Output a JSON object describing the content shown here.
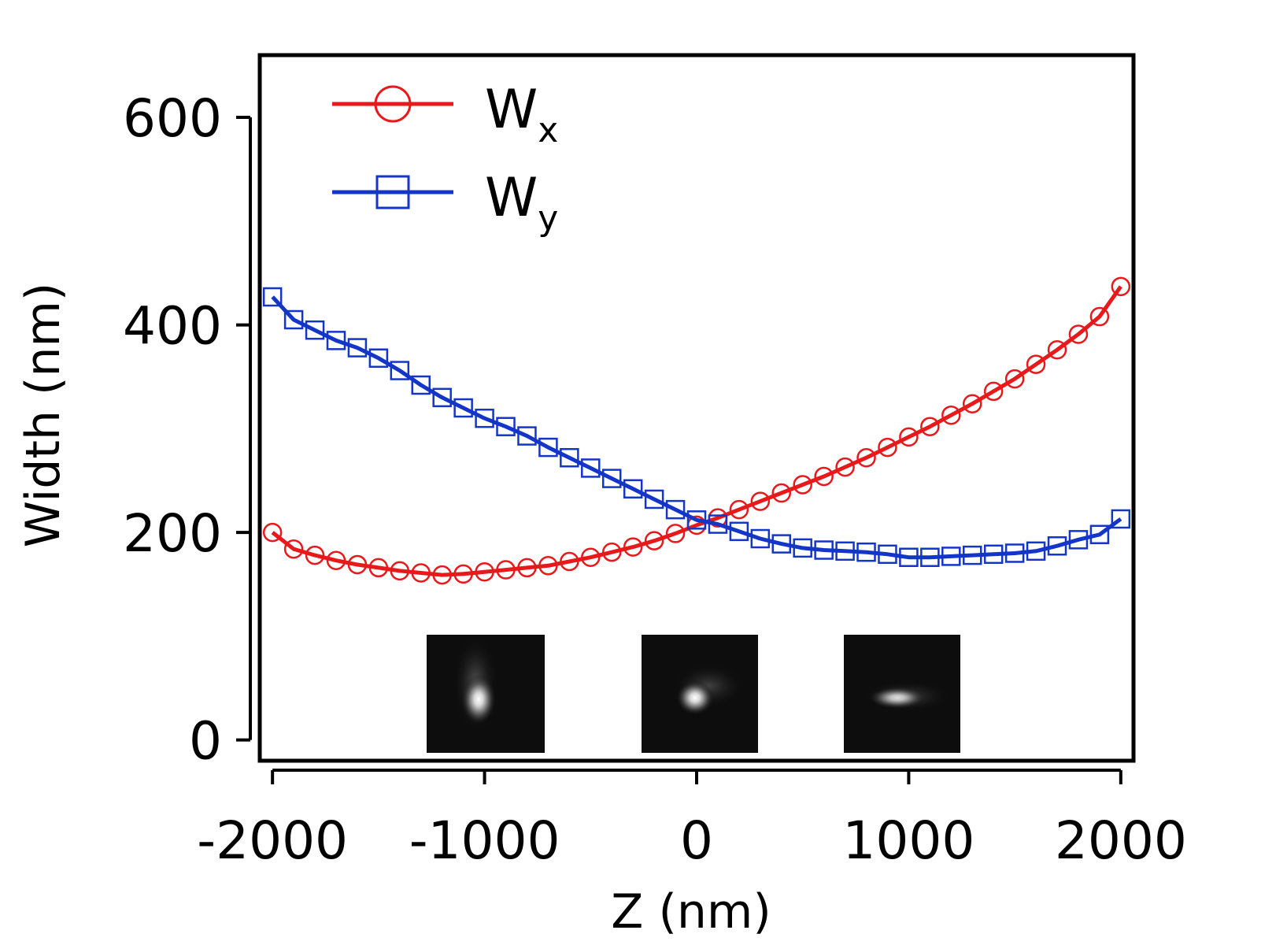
{
  "chart_data": {
    "type": "line",
    "title": "",
    "xlabel": "Z (nm)",
    "ylabel": "Width (nm)",
    "xlim": [
      -2060,
      2060
    ],
    "ylim": [
      -20,
      660
    ],
    "x_ticks": [
      -2000,
      -1000,
      0,
      1000,
      2000
    ],
    "x_tick_labels": [
      "-2000",
      "-1000",
      "0",
      "1000",
      "2000"
    ],
    "y_ticks": [
      0,
      200,
      400,
      600
    ],
    "y_tick_labels": [
      "0",
      "200",
      "400",
      "600"
    ],
    "grid": false,
    "legend_position": "top-left",
    "colors": {
      "wx": "#e8191b",
      "wy": "#1436c8"
    },
    "series": [
      {
        "name": "W",
        "subscript": "x",
        "marker": "circle",
        "x": [
          -2000,
          -1900,
          -1800,
          -1700,
          -1600,
          -1500,
          -1400,
          -1300,
          -1200,
          -1100,
          -1000,
          -900,
          -800,
          -700,
          -600,
          -500,
          -400,
          -300,
          -200,
          -100,
          0,
          100,
          200,
          300,
          400,
          500,
          600,
          700,
          800,
          900,
          1000,
          1100,
          1200,
          1300,
          1400,
          1500,
          1600,
          1700,
          1800,
          1900,
          2000
        ],
        "values": [
          200,
          184,
          178,
          173,
          169,
          166,
          163,
          161,
          159,
          160,
          162,
          164,
          166,
          168,
          172,
          176,
          181,
          186,
          192,
          199,
          207,
          214,
          222,
          230,
          238,
          246,
          254,
          263,
          272,
          282,
          292,
          302,
          313,
          324,
          336,
          348,
          362,
          376,
          391,
          408,
          437
        ]
      },
      {
        "name": "W",
        "subscript": "y",
        "marker": "square",
        "x": [
          -2000,
          -1900,
          -1800,
          -1700,
          -1600,
          -1500,
          -1400,
          -1300,
          -1200,
          -1100,
          -1000,
          -900,
          -800,
          -700,
          -600,
          -500,
          -400,
          -300,
          -200,
          -100,
          0,
          100,
          200,
          300,
          400,
          500,
          600,
          700,
          800,
          900,
          1000,
          1100,
          1200,
          1300,
          1400,
          1500,
          1600,
          1700,
          1800,
          1900,
          2000
        ],
        "values": [
          427,
          405,
          395,
          385,
          378,
          368,
          356,
          342,
          330,
          320,
          310,
          302,
          293,
          282,
          272,
          262,
          252,
          242,
          232,
          222,
          212,
          208,
          201,
          194,
          189,
          185,
          183,
          182,
          181,
          179,
          176,
          176,
          177,
          178,
          179,
          180,
          182,
          187,
          193,
          198,
          213
        ]
      }
    ],
    "insets": [
      "psf-image-1",
      "psf-image-2",
      "psf-image-3"
    ]
  }
}
